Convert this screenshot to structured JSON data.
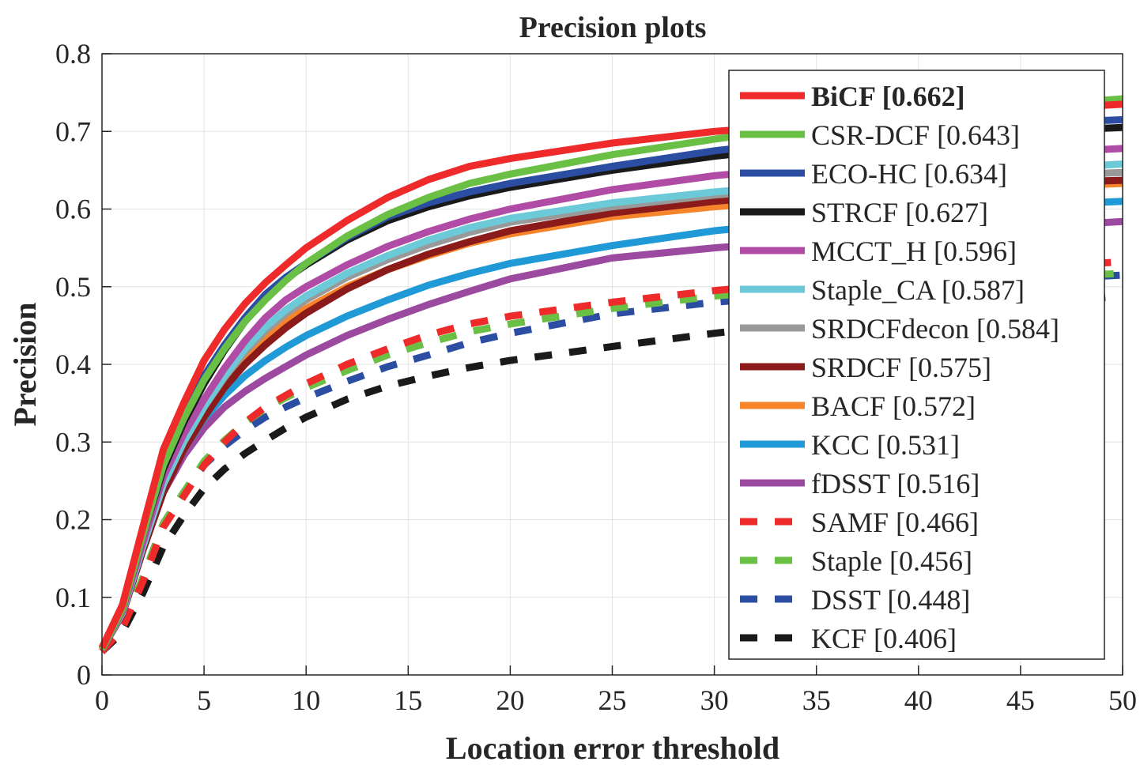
{
  "chart_data": {
    "type": "line",
    "title": "Precision plots",
    "xlabel": "Location error threshold",
    "ylabel": "Precision",
    "xlim": [
      0,
      50
    ],
    "ylim": [
      0,
      0.8
    ],
    "xticks": [
      "0",
      "5",
      "10",
      "15",
      "20",
      "25",
      "30",
      "35",
      "40",
      "45",
      "50"
    ],
    "yticks": [
      "0",
      "0.1",
      "0.2",
      "0.3",
      "0.4",
      "0.5",
      "0.6",
      "0.7",
      "0.8"
    ],
    "grid": true,
    "legend_position": "top-right",
    "x": [
      0,
      1,
      2,
      3,
      4,
      5,
      6,
      7,
      8,
      9,
      10,
      12,
      14,
      16,
      18,
      20,
      25,
      30,
      35,
      40,
      45,
      50
    ],
    "series": [
      {
        "name": "BiCF [0.662]",
        "color": "#ee2a2a",
        "style": "solid",
        "bold": true,
        "values": [
          0.035,
          0.09,
          0.19,
          0.29,
          0.35,
          0.405,
          0.445,
          0.478,
          0.505,
          0.528,
          0.55,
          0.585,
          0.615,
          0.638,
          0.655,
          0.665,
          0.685,
          0.7,
          0.71,
          0.72,
          0.728,
          0.735
        ]
      },
      {
        "name": "CSR-DCF [0.643]",
        "color": "#6abf45",
        "style": "solid",
        "values": [
          0.033,
          0.085,
          0.18,
          0.27,
          0.33,
          0.38,
          0.42,
          0.455,
          0.483,
          0.508,
          0.53,
          0.565,
          0.593,
          0.615,
          0.633,
          0.645,
          0.67,
          0.69,
          0.708,
          0.72,
          0.732,
          0.742
        ]
      },
      {
        "name": "ECO-HC [0.634]",
        "color": "#2b4ea2",
        "style": "solid",
        "values": [
          0.033,
          0.085,
          0.18,
          0.27,
          0.33,
          0.385,
          0.425,
          0.46,
          0.49,
          0.512,
          0.53,
          0.563,
          0.59,
          0.608,
          0.622,
          0.633,
          0.655,
          0.675,
          0.69,
          0.702,
          0.71,
          0.715
        ]
      },
      {
        "name": "STRCF [0.627]",
        "color": "#1a1a1a",
        "style": "solid",
        "values": [
          0.033,
          0.085,
          0.18,
          0.265,
          0.325,
          0.375,
          0.418,
          0.455,
          0.485,
          0.51,
          0.528,
          0.56,
          0.585,
          0.603,
          0.617,
          0.628,
          0.65,
          0.668,
          0.682,
          0.692,
          0.7,
          0.705
        ]
      },
      {
        "name": "MCCT_H [0.596]",
        "color": "#b04ca5",
        "style": "solid",
        "values": [
          0.033,
          0.082,
          0.17,
          0.255,
          0.31,
          0.355,
          0.395,
          0.43,
          0.46,
          0.483,
          0.5,
          0.528,
          0.552,
          0.571,
          0.587,
          0.6,
          0.625,
          0.643,
          0.655,
          0.665,
          0.672,
          0.678
        ]
      },
      {
        "name": "Staple_CA [0.587]",
        "color": "#6ccad8",
        "style": "solid",
        "values": [
          0.033,
          0.08,
          0.165,
          0.245,
          0.3,
          0.345,
          0.385,
          0.42,
          0.448,
          0.47,
          0.488,
          0.517,
          0.54,
          0.56,
          0.576,
          0.588,
          0.608,
          0.622,
          0.633,
          0.642,
          0.65,
          0.658
        ]
      },
      {
        "name": "SRDCFdecon [0.584]",
        "color": "#999999",
        "style": "solid",
        "values": [
          0.033,
          0.08,
          0.165,
          0.245,
          0.3,
          0.345,
          0.383,
          0.416,
          0.443,
          0.465,
          0.483,
          0.512,
          0.535,
          0.554,
          0.57,
          0.583,
          0.603,
          0.618,
          0.628,
          0.636,
          0.642,
          0.647
        ]
      },
      {
        "name": "SRDCF [0.575]",
        "color": "#8b1a1a",
        "style": "solid",
        "values": [
          0.033,
          0.078,
          0.16,
          0.235,
          0.29,
          0.332,
          0.37,
          0.4,
          0.425,
          0.447,
          0.466,
          0.497,
          0.522,
          0.542,
          0.558,
          0.572,
          0.595,
          0.61,
          0.62,
          0.628,
          0.633,
          0.637
        ]
      },
      {
        "name": "BACF [0.572]",
        "color": "#f5842b",
        "style": "solid",
        "values": [
          0.033,
          0.08,
          0.165,
          0.245,
          0.3,
          0.343,
          0.38,
          0.41,
          0.435,
          0.455,
          0.472,
          0.5,
          0.522,
          0.54,
          0.556,
          0.568,
          0.59,
          0.603,
          0.613,
          0.622,
          0.628,
          0.633
        ]
      },
      {
        "name": "KCC [0.531]",
        "color": "#1f9ad6",
        "style": "solid",
        "values": [
          0.033,
          0.08,
          0.165,
          0.24,
          0.29,
          0.33,
          0.36,
          0.385,
          0.405,
          0.422,
          0.437,
          0.462,
          0.483,
          0.502,
          0.517,
          0.53,
          0.553,
          0.572,
          0.585,
          0.596,
          0.604,
          0.61
        ]
      },
      {
        "name": "fDSST [0.516]",
        "color": "#9b4aa0",
        "style": "solid",
        "values": [
          0.033,
          0.078,
          0.16,
          0.235,
          0.282,
          0.318,
          0.345,
          0.365,
          0.382,
          0.397,
          0.412,
          0.437,
          0.458,
          0.477,
          0.494,
          0.51,
          0.537,
          0.55,
          0.56,
          0.568,
          0.576,
          0.584
        ]
      },
      {
        "name": "SAMF [0.466]",
        "color": "#ee2a2a",
        "style": "dashed",
        "values": [
          0.03,
          0.06,
          0.12,
          0.19,
          0.23,
          0.27,
          0.3,
          0.325,
          0.345,
          0.36,
          0.375,
          0.4,
          0.42,
          0.438,
          0.452,
          0.462,
          0.48,
          0.495,
          0.507,
          0.517,
          0.525,
          0.532
        ]
      },
      {
        "name": "Staple [0.456]",
        "color": "#6abf45",
        "style": "dashed",
        "values": [
          0.03,
          0.06,
          0.125,
          0.195,
          0.235,
          0.275,
          0.302,
          0.325,
          0.343,
          0.357,
          0.37,
          0.392,
          0.412,
          0.428,
          0.442,
          0.452,
          0.472,
          0.488,
          0.498,
          0.506,
          0.512,
          0.517
        ]
      },
      {
        "name": "DSST [0.448]",
        "color": "#2b4ea2",
        "style": "dashed",
        "values": [
          0.03,
          0.06,
          0.125,
          0.195,
          0.235,
          0.27,
          0.295,
          0.315,
          0.332,
          0.345,
          0.357,
          0.378,
          0.397,
          0.412,
          0.428,
          0.44,
          0.465,
          0.48,
          0.49,
          0.5,
          0.508,
          0.515
        ]
      },
      {
        "name": "KCF [0.406]",
        "color": "#1a1a1a",
        "style": "dashed",
        "values": [
          0.03,
          0.055,
          0.105,
          0.165,
          0.205,
          0.24,
          0.265,
          0.285,
          0.302,
          0.318,
          0.332,
          0.355,
          0.372,
          0.385,
          0.396,
          0.405,
          0.423,
          0.44,
          0.455,
          0.467,
          0.478,
          0.488
        ]
      }
    ]
  }
}
